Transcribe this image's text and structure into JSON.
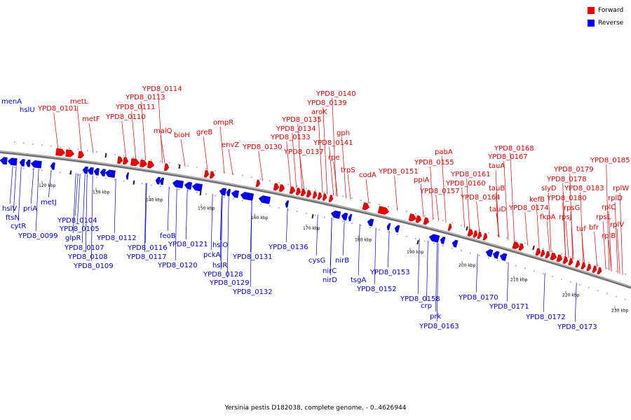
{
  "legend": {
    "forward_label": "Forward",
    "reverse_label": "Reverse",
    "forward_color": "#ee0000",
    "reverse_color": "#0000ee"
  },
  "caption": "Yersinia pestis D182038, complete genome. - 0..4626944",
  "axis": {
    "ticks": [
      "120 kbp",
      "130 kbp",
      "140 kbp",
      "150 kbp",
      "160 kbp",
      "170 kbp",
      "180 kbp",
      "190 kbp",
      "200 kbp",
      "210 kbp",
      "220 kbp",
      "230 kbp"
    ]
  },
  "forward_genes": [
    "metL",
    "YPD8_0101",
    "metF",
    "YPD8_0114",
    "YPD8_0113",
    "YPD8_0111",
    "YPD8_0110",
    "malQ",
    "bioH",
    "ompR",
    "greB",
    "envZ",
    "YPD8_0130",
    "YPD8_0140",
    "YPD8_0139",
    "aroK",
    "YPD8_0135",
    "YPD8_0134",
    "YPD8_0133",
    "gph",
    "YPD8_0141",
    "YPD8_0137",
    "rpe",
    "trpS",
    "codA",
    "YPD8_0151",
    "pabA",
    "YPD8_0155",
    "ppiA",
    "YPD8_0157",
    "YPD8_0168",
    "YPD8_0167",
    "tauA",
    "YPD8_0161",
    "YPD8_0160",
    "tauB",
    "YPD8_0164",
    "tauD",
    "YPD8_0174",
    "YPD8_0185",
    "YPD8_0179",
    "YPD8_0178",
    "slyD",
    "YPD8_0183",
    "kefB",
    "YPD8_0180",
    "rpsG",
    "fkpA",
    "rpsJ",
    "rplW",
    "rplD",
    "rplC",
    "rpsL",
    "tuf",
    "bfr",
    "rplV",
    "rplB"
  ],
  "reverse_genes": [
    "menA",
    "hslU",
    "hslV",
    "ftsN",
    "cytR",
    "priA",
    "metJ",
    "YPD8_0099",
    "YPD8_0104",
    "YPD8_0105",
    "glpR",
    "YPD8_0107",
    "YPD8_0108",
    "YPD8_0109",
    "YPD8_0112",
    "YPD8_0116",
    "YPD8_0117",
    "feoB",
    "YPD8_0121",
    "YPD8_0120",
    "hslO",
    "pckA",
    "hslR",
    "YPD8_0128",
    "YPD8_0129",
    "YPD8_0131",
    "YPD8_0132",
    "YPD8_0136",
    "cysG",
    "nirC",
    "nirD",
    "nirB",
    "tsgA",
    "YPD8_0153",
    "YPD8_0152",
    "YPD8_0158",
    "crp",
    "prk",
    "YPD8_0163",
    "YPD8_0170",
    "YPD8_0171",
    "YPD8_0172",
    "YPD8_0173"
  ]
}
